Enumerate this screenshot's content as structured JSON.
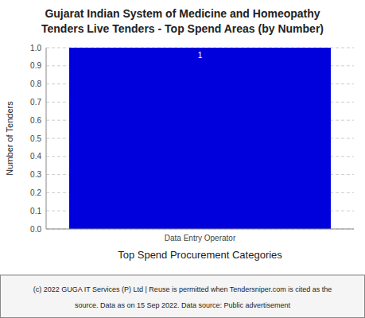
{
  "chart_data": {
    "type": "bar",
    "title": "Gujarat Indian System of Medicine and Homeopathy",
    "subtitle": "Tenders Live Tenders - Top Spend Areas (by Number)",
    "categories": [
      "Data Entry Operator"
    ],
    "values": [
      1
    ],
    "color": "#0000dd",
    "x_label": "Top Spend Procurement Categories",
    "y_label": "Number of Tenders",
    "ylim": [
      0.0,
      1.0
    ],
    "yticks": [
      {
        "value": 0.0,
        "label": "0.0"
      },
      0.1,
      0.2,
      0.3,
      0.4,
      0.5,
      0.6,
      0.7,
      0.8,
      0.9,
      {
        "value": 1.0,
        "label": "1.0"
      }
    ],
    "grid": true,
    "data_labels": true,
    "annotations": [
      "(c) 2022 GUGA IT Services (P) Ltd | Reuse is permitted when Tendersniper.com is cited as the",
      "source. Data as on 15 Sep 2022. Data source: Public advertisement"
    ]
  }
}
